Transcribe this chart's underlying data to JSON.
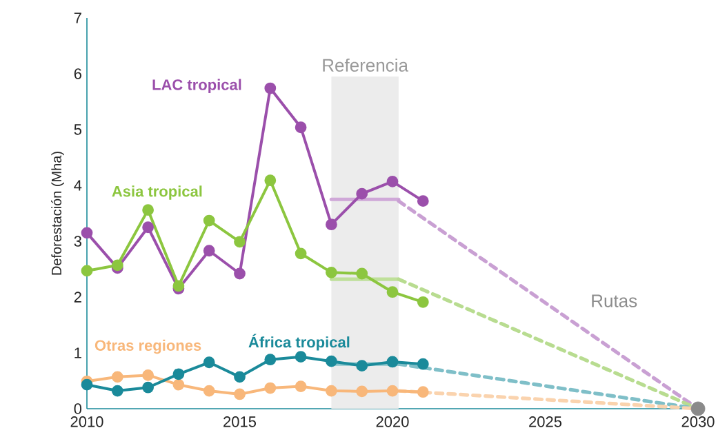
{
  "chart_data": {
    "type": "line",
    "ylabel": "Deforestación (Mha)",
    "xlim": [
      2010,
      2030
    ],
    "ylim": [
      0,
      7
    ],
    "xticks": [
      2010,
      2015,
      2020,
      2025,
      2030
    ],
    "yticks": [
      0,
      1,
      2,
      3,
      4,
      5,
      6,
      7
    ],
    "grid": false,
    "legend": false,
    "marker": "circle",
    "line_style": "solid",
    "x": [
      2010,
      2011,
      2012,
      2013,
      2014,
      2015,
      2016,
      2017,
      2018,
      2019,
      2020,
      2021
    ],
    "series": [
      {
        "name": "LAC tropical",
        "color": "#9b4fab",
        "values": [
          3.15,
          2.52,
          3.25,
          2.15,
          2.83,
          2.42,
          5.74,
          5.04,
          3.3,
          3.85,
          4.07,
          3.72
        ]
      },
      {
        "name": "Asia tropical",
        "color": "#8cc63f",
        "values": [
          2.47,
          2.57,
          3.56,
          2.2,
          3.37,
          2.99,
          4.09,
          2.78,
          2.44,
          2.42,
          2.09,
          1.91
        ]
      },
      {
        "name": "Otras regiones",
        "color": "#f8b77a",
        "values": [
          0.49,
          0.57,
          0.6,
          0.43,
          0.32,
          0.26,
          0.37,
          0.4,
          0.32,
          0.31,
          0.32,
          0.3
        ]
      },
      {
        "name": "África tropical",
        "color": "#1a8a9a",
        "values": [
          0.43,
          0.32,
          0.38,
          0.62,
          0.83,
          0.57,
          0.88,
          0.93,
          0.85,
          0.77,
          0.84,
          0.8
        ]
      },
      {
        "color": "#cfa8d8",
        "x": [
          2018,
          2020.2
        ],
        "values": [
          3.75,
          3.75
        ],
        "marker": "none"
      },
      {
        "color": "#bfe09a",
        "x": [
          2018,
          2020.2
        ],
        "values": [
          2.32,
          2.32
        ],
        "marker": "none"
      },
      {
        "color": "#8cc5cc",
        "x": [
          2018,
          2020.2
        ],
        "values": [
          0.8,
          0.8
        ],
        "marker": "none"
      },
      {
        "color": "#c9a0d3",
        "x": [
          2020.2,
          2030
        ],
        "values": [
          3.72,
          0
        ],
        "marker": "none",
        "line_style": "dashed"
      },
      {
        "color": "#b8dc90",
        "x": [
          2020.2,
          2030
        ],
        "values": [
          2.32,
          0
        ],
        "marker": "none",
        "line_style": "dashed"
      },
      {
        "color": "#7fbfc8",
        "x": [
          2020.2,
          2030
        ],
        "values": [
          0.8,
          0
        ],
        "marker": "none",
        "line_style": "dashed"
      },
      {
        "color": "#fad3ae",
        "x": [
          2020.2,
          2030
        ],
        "values": [
          0.32,
          0
        ],
        "marker": "none",
        "line_style": "dashed"
      },
      {
        "type": "scatter",
        "color": "#8a8a8a",
        "x": [
          2030
        ],
        "values": [
          0
        ],
        "marker": "circle"
      }
    ],
    "bands": [
      {
        "axis": "x",
        "from": 2018,
        "to": 2020.2,
        "label": "Referencia",
        "color": "#ececec"
      }
    ],
    "annotations": [
      "Rutas"
    ]
  }
}
